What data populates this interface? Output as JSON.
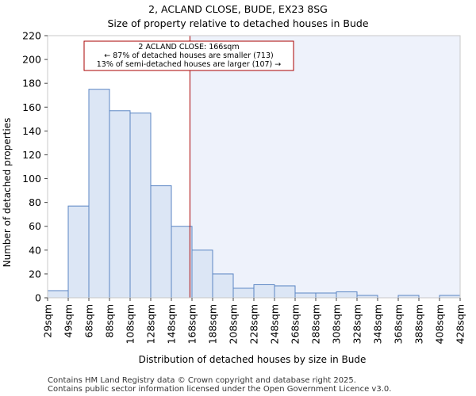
{
  "chart_data": {
    "type": "bar",
    "title": "2, ACLAND CLOSE, BUDE, EX23 8SG",
    "subtitle": "Size of property relative to detached houses in Bude",
    "xlabel": "Distribution of detached houses by size in Bude",
    "ylabel": "Number of detached properties",
    "ylim": [
      0,
      220
    ],
    "yticks": [
      0,
      20,
      40,
      60,
      80,
      100,
      120,
      140,
      160,
      180,
      200,
      220
    ],
    "bin_edges": [
      29,
      49,
      68,
      88,
      108,
      128,
      148,
      168,
      188,
      208,
      228,
      248,
      268,
      288,
      308,
      328,
      348,
      368,
      388,
      408,
      428
    ],
    "tick_labels": [
      "29sqm",
      "49sqm",
      "68sqm",
      "88sqm",
      "108sqm",
      "128sqm",
      "148sqm",
      "168sqm",
      "188sqm",
      "208sqm",
      "228sqm",
      "248sqm",
      "268sqm",
      "288sqm",
      "308sqm",
      "328sqm",
      "348sqm",
      "368sqm",
      "388sqm",
      "408sqm",
      "428sqm"
    ],
    "values": [
      6,
      77,
      175,
      157,
      155,
      94,
      60,
      40,
      20,
      8,
      11,
      10,
      4,
      4,
      5,
      2,
      0,
      2,
      0,
      2
    ],
    "marker_value": 166,
    "annotation": {
      "line1": "2 ACLAND CLOSE: 166sqm",
      "line2": "← 87% of detached houses are smaller (713)",
      "line3": "13% of semi-detached houses are larger (107) →"
    },
    "colors": {
      "bar_fill": "#dce6f5",
      "bar_stroke": "#5b86c4",
      "shade": "#eef2fb",
      "marker": "#aa0000"
    }
  },
  "footer": {
    "line1": "Contains HM Land Registry data © Crown copyright and database right 2025.",
    "line2": "Contains public sector information licensed under the Open Government Licence v3.0."
  }
}
